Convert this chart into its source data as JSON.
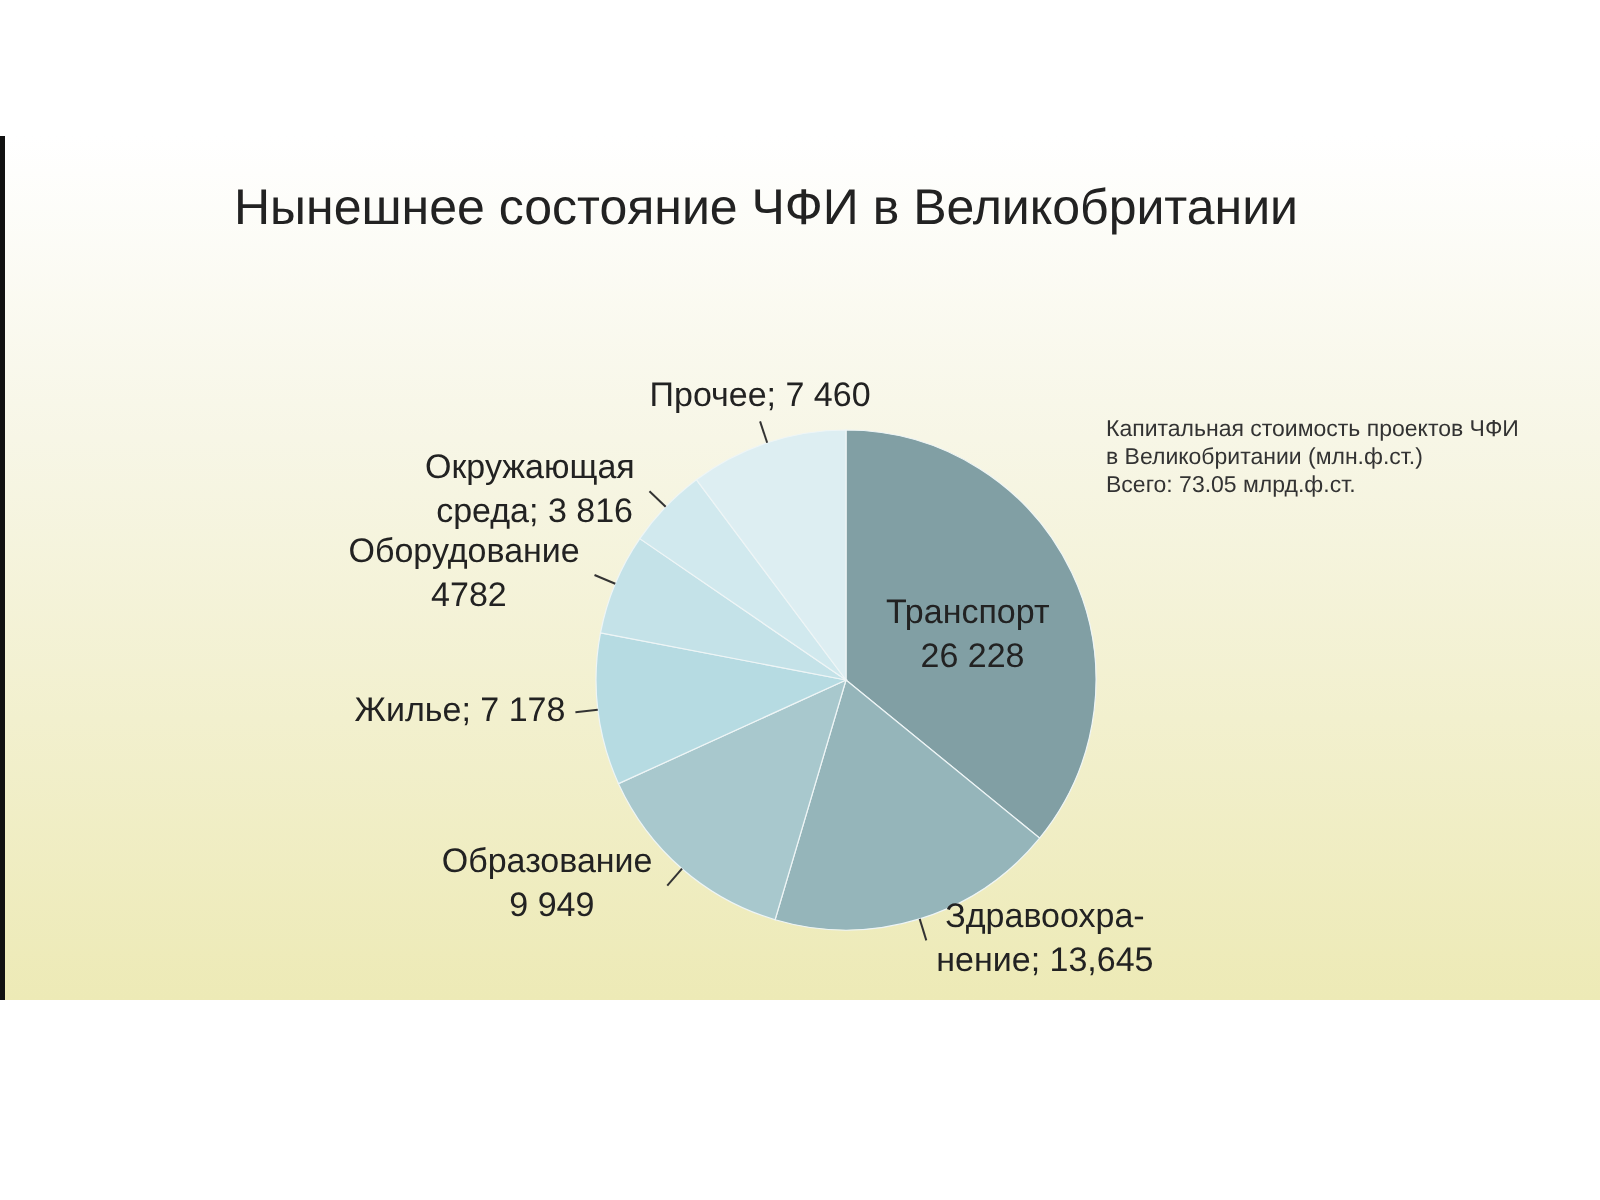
{
  "chart_data": {
    "type": "pie",
    "title": "Нынешнее состояние ЧФИ в Великобритании",
    "categories": [
      "Транспорт",
      "Здравоохра-нение",
      "Образование",
      "Жилье",
      "Оборудование",
      "Окружающая среда",
      "Прочее"
    ],
    "values": [
      26228,
      13645,
      9949,
      7178,
      4782,
      3816,
      7460
    ],
    "value_labels": [
      "26 228",
      "13,645",
      "9 949",
      "7 178",
      "4782",
      "3 816",
      "7 460"
    ],
    "colors": [
      "#819fa4",
      "#95b5ba",
      "#a8c8cd",
      "#b6dbe2",
      "#c4e2e8",
      "#d1e9ee",
      "#ddeef2"
    ],
    "annotations": [
      "Капитальная стоимость проектов ЧФИ",
      "в Великобритании (млн.ф.ст.)",
      "Всего: 73.05 млрд.ф.ст."
    ]
  }
}
